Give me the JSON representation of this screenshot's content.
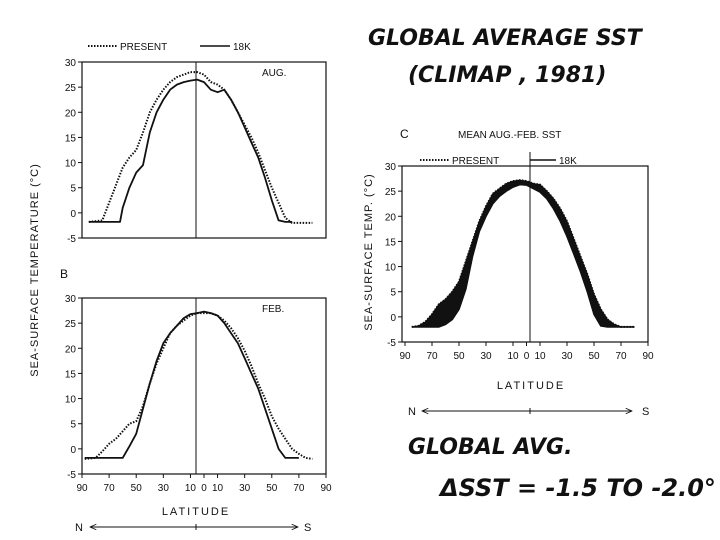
{
  "handwritten": {
    "title_line1": "GLOBAL AVERAGE  SST",
    "title_line2": "(CLIMAP , 1981)",
    "global_avg_label": "GLOBAL AVG.",
    "delta_sst": "ΔSST = -1.5 TO -2.0°"
  },
  "legend": {
    "present": "PRESENT",
    "glacial": "18K"
  },
  "y_axis_title_left": "SEA-SURFACE  TEMPERATURE (°C)",
  "y_axis_title_right": "SEA-SURFACE  TEMP. (°C)",
  "x_axis_title": "LATITUDE",
  "direction": {
    "north": "N",
    "south": "S"
  },
  "chart_data": [
    {
      "id": "A",
      "type": "line",
      "panel_label": "",
      "title": "AUG.",
      "xlabel": "",
      "ylabel": "SEA-SURFACE TEMPERATURE (°C)",
      "xlim": [
        -90,
        90
      ],
      "ylim": [
        -5,
        30
      ],
      "yticks": [
        -5,
        0,
        5,
        10,
        15,
        20,
        25,
        30
      ],
      "xticks": [],
      "series": [
        {
          "name": "PRESENT",
          "style": "dotted",
          "x": [
            -85,
            -75,
            -70,
            -65,
            -60,
            -55,
            -50,
            -45,
            -40,
            -35,
            -30,
            -25,
            -20,
            -15,
            -10,
            -5,
            0,
            5,
            10,
            15,
            20,
            25,
            30,
            35,
            40,
            45,
            50,
            55,
            60,
            65,
            70,
            75,
            80
          ],
          "y": [
            -1.8,
            -1.5,
            2,
            5.5,
            9,
            11,
            12.5,
            16,
            20,
            22.5,
            24.5,
            26,
            27,
            27.5,
            28,
            28,
            27.5,
            26,
            25.5,
            24.5,
            22.5,
            20,
            17.5,
            15,
            12,
            8.5,
            5,
            2,
            -1,
            -2,
            -2,
            -2,
            -2
          ]
        },
        {
          "name": "18K",
          "style": "solid",
          "x": [
            -85,
            -75,
            -65,
            -62,
            -60,
            -55,
            -50,
            -45,
            -40,
            -35,
            -30,
            -25,
            -20,
            -15,
            -10,
            -5,
            0,
            5,
            10,
            15,
            20,
            25,
            30,
            35,
            40,
            45,
            50,
            55,
            60,
            65
          ],
          "y": [
            -1.8,
            -1.8,
            -1.8,
            -1.8,
            1,
            5,
            8,
            9.5,
            16,
            20,
            22.5,
            24.5,
            25.5,
            26,
            26.3,
            26.5,
            26,
            24.5,
            24,
            24.5,
            22.5,
            20,
            17,
            14,
            11,
            7,
            2.5,
            -1.5,
            -1.8,
            -1.8
          ]
        }
      ]
    },
    {
      "id": "B",
      "type": "line",
      "panel_label": "B",
      "title": "FEB.",
      "xlabel": "LATITUDE",
      "ylabel": "",
      "xlim": [
        -90,
        90
      ],
      "ylim": [
        -5,
        30
      ],
      "yticks": [
        -5,
        0,
        5,
        10,
        15,
        20,
        25,
        30
      ],
      "xticks": [
        -90,
        -70,
        -50,
        -30,
        -10,
        0,
        10,
        30,
        50,
        70,
        90
      ],
      "xticklabels": [
        "90",
        "70",
        "50",
        "30",
        "10",
        "0",
        "10",
        "30",
        "50",
        "70",
        "90"
      ],
      "series": [
        {
          "name": "PRESENT",
          "style": "dotted",
          "x": [
            -88,
            -80,
            -75,
            -70,
            -65,
            -60,
            -55,
            -50,
            -45,
            -40,
            -35,
            -30,
            -25,
            -20,
            -15,
            -10,
            -5,
            0,
            5,
            10,
            15,
            20,
            25,
            30,
            35,
            40,
            45,
            50,
            55,
            60,
            65,
            70,
            75,
            80
          ],
          "y": [
            -2,
            -1.8,
            -0.5,
            1,
            2,
            3.5,
            5,
            5.5,
            8.5,
            13,
            17,
            20,
            23,
            24.5,
            25.5,
            26.5,
            27,
            27,
            27,
            26.5,
            25.5,
            24,
            22,
            19.5,
            16.5,
            13,
            10,
            6.5,
            4,
            2,
            0,
            -1,
            -1.8,
            -2
          ]
        },
        {
          "name": "18K",
          "style": "solid",
          "x": [
            -88,
            -70,
            -65,
            -60,
            -55,
            -50,
            -45,
            -40,
            -35,
            -30,
            -25,
            -20,
            -15,
            -10,
            -5,
            0,
            5,
            10,
            15,
            20,
            25,
            30,
            35,
            40,
            45,
            50,
            55,
            60,
            65,
            70
          ],
          "y": [
            -1.8,
            -1.8,
            -1.8,
            -1.8,
            0.5,
            3,
            8,
            13,
            17.5,
            21,
            23,
            24.5,
            26,
            26.8,
            27,
            27.3,
            27,
            26.5,
            25,
            23,
            21,
            18,
            15,
            12,
            8,
            4,
            0,
            -1.8,
            -1.8,
            -1.8
          ]
        }
      ]
    },
    {
      "id": "C",
      "type": "area",
      "panel_label": "C",
      "title": "MEAN AUG.-FEB. SST",
      "xlabel": "LATITUDE",
      "ylabel": "SEA-SURFACE TEMP. (°C)",
      "xlim": [
        -90,
        90
      ],
      "ylim": [
        -5,
        30
      ],
      "yticks": [
        -5,
        0,
        5,
        10,
        15,
        20,
        25,
        30
      ],
      "xticks": [
        -90,
        -70,
        -50,
        -30,
        -10,
        0,
        10,
        30,
        50,
        70,
        90
      ],
      "xticklabels": [
        "90",
        "70",
        "50",
        "30",
        "10",
        "0",
        "10",
        "30",
        "50",
        "70",
        "90"
      ],
      "series": [
        {
          "name": "PRESENT",
          "style": "upper-envelope",
          "x": [
            -85,
            -80,
            -75,
            -70,
            -65,
            -60,
            -55,
            -50,
            -45,
            -40,
            -35,
            -30,
            -25,
            -20,
            -15,
            -10,
            -5,
            0,
            5,
            10,
            15,
            20,
            25,
            30,
            35,
            40,
            45,
            50,
            55,
            60,
            65,
            70,
            75,
            80
          ],
          "y": [
            -2,
            -1.8,
            -1,
            0.5,
            2.5,
            3.5,
            5,
            7,
            11,
            15,
            19,
            22,
            24.5,
            25.5,
            26.5,
            27,
            27.2,
            27,
            26.5,
            26.3,
            25,
            23.5,
            21.5,
            19,
            15.5,
            12,
            8.5,
            4.5,
            1.5,
            -0.5,
            -1.5,
            -2,
            -2,
            -2
          ]
        },
        {
          "name": "18K",
          "style": "lower-envelope",
          "x": [
            -85,
            -80,
            -75,
            -70,
            -65,
            -60,
            -55,
            -50,
            -45,
            -40,
            -35,
            -30,
            -25,
            -20,
            -15,
            -10,
            -5,
            0,
            5,
            10,
            15,
            20,
            25,
            30,
            35,
            40,
            45,
            50,
            55,
            60,
            65,
            70,
            75,
            80
          ],
          "y": [
            -2,
            -2,
            -2,
            -2,
            -2,
            -1.5,
            -0.5,
            1.5,
            5.5,
            12,
            17,
            20,
            22.5,
            24,
            25,
            25.8,
            26.3,
            26.2,
            25.5,
            24.8,
            23.5,
            21.5,
            19,
            16,
            12.5,
            9,
            5,
            0.5,
            -1.8,
            -2,
            -2,
            -2,
            -2,
            -2
          ]
        }
      ]
    }
  ]
}
